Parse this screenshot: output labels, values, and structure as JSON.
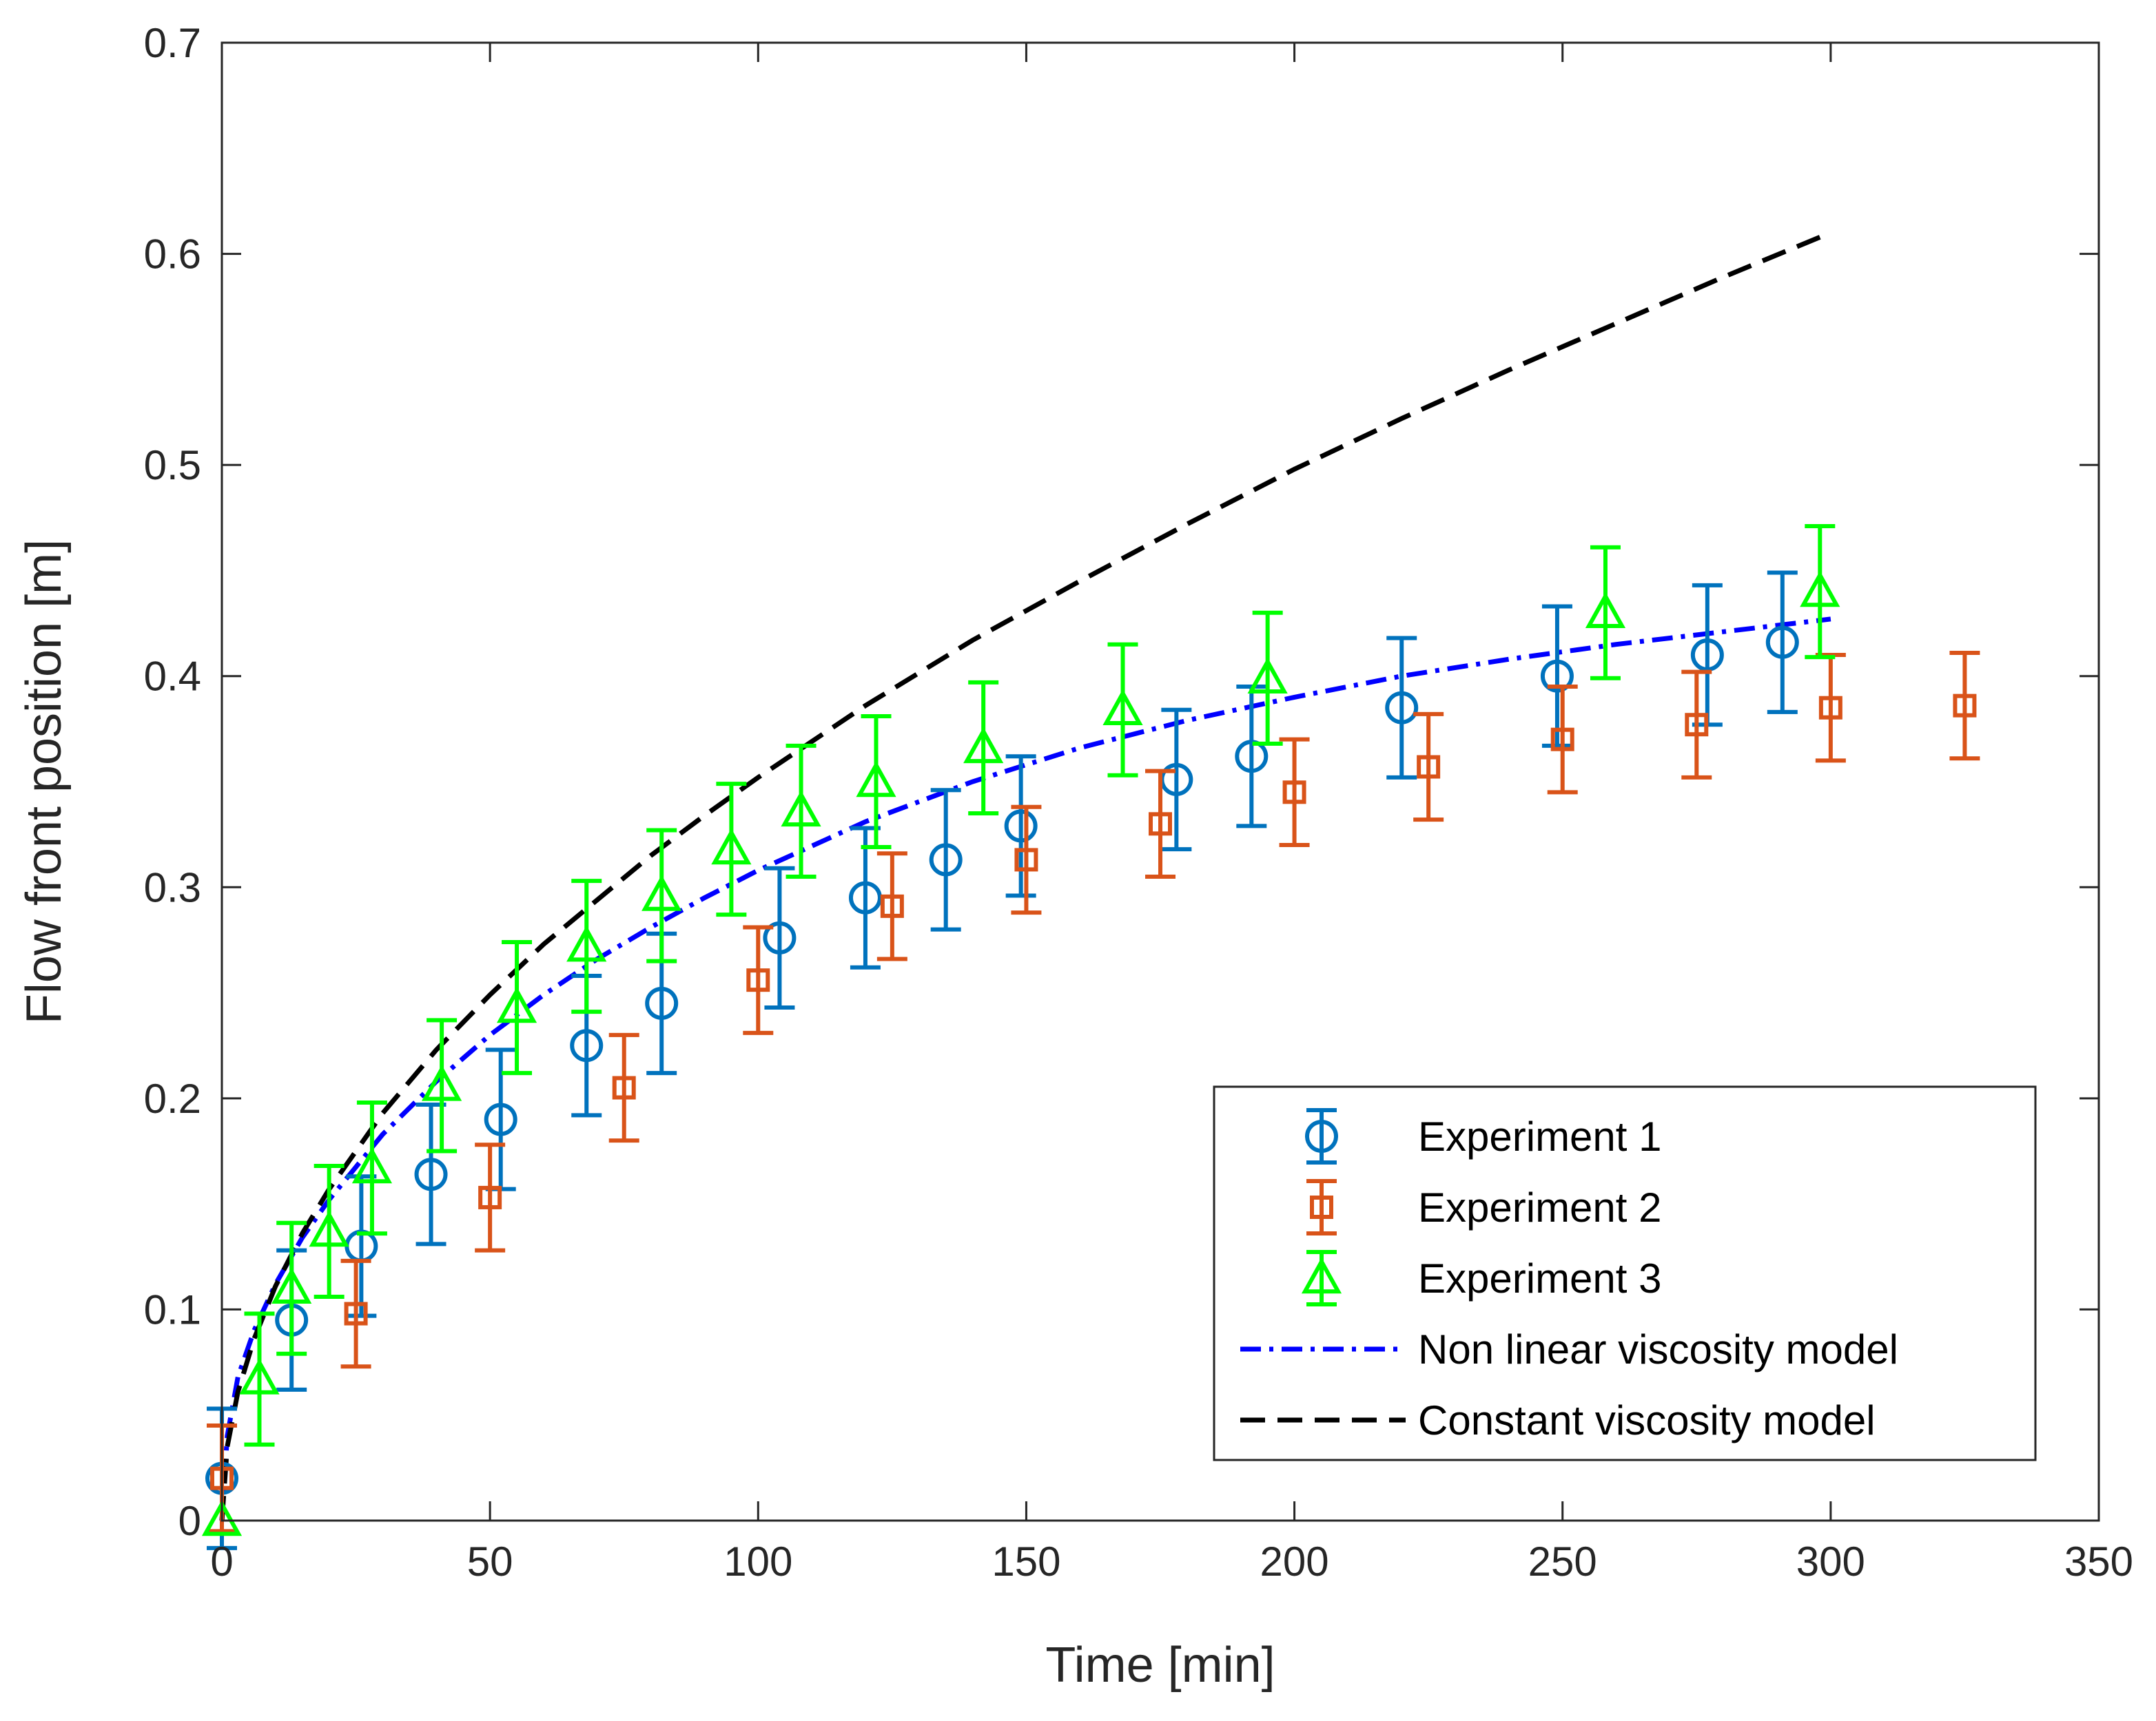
{
  "chart_data": {
    "type": "scatter",
    "title": "",
    "xlabel": "Time [min]",
    "ylabel": "Flow front position [m]",
    "xlim": [
      0,
      350
    ],
    "ylim": [
      0,
      0.7
    ],
    "xticks": [
      0,
      50,
      100,
      150,
      200,
      250,
      300,
      350
    ],
    "yticks": [
      0,
      0.1,
      0.2,
      0.3,
      0.4,
      0.5,
      0.6,
      0.7
    ],
    "xtick_labels": [
      "0",
      "50",
      "100",
      "150",
      "200",
      "250",
      "300",
      "350"
    ],
    "ytick_labels": [
      "0",
      "0.1",
      "0.2",
      "0.3",
      "0.4",
      "0.5",
      "0.6",
      "0.7"
    ],
    "grid": false,
    "legend_position": "bottom-right",
    "series": [
      {
        "name": "Experiment 1",
        "kind": "errorbar",
        "marker": "circle",
        "color": "#0072BD",
        "points": [
          {
            "x": 0,
            "y": 0.02,
            "err": 0.033
          },
          {
            "x": 13,
            "y": 0.095,
            "err": 0.033
          },
          {
            "x": 26,
            "y": 0.13,
            "err": 0.033
          },
          {
            "x": 39,
            "y": 0.164,
            "err": 0.033
          },
          {
            "x": 52,
            "y": 0.19,
            "err": 0.033
          },
          {
            "x": 68,
            "y": 0.225,
            "err": 0.033
          },
          {
            "x": 82,
            "y": 0.245,
            "err": 0.033
          },
          {
            "x": 104,
            "y": 0.276,
            "err": 0.033
          },
          {
            "x": 120,
            "y": 0.295,
            "err": 0.033
          },
          {
            "x": 135,
            "y": 0.313,
            "err": 0.033
          },
          {
            "x": 149,
            "y": 0.329,
            "err": 0.033
          },
          {
            "x": 178,
            "y": 0.351,
            "err": 0.033
          },
          {
            "x": 192,
            "y": 0.362,
            "err": 0.033
          },
          {
            "x": 220,
            "y": 0.385,
            "err": 0.033
          },
          {
            "x": 249,
            "y": 0.4,
            "err": 0.033
          },
          {
            "x": 277,
            "y": 0.41,
            "err": 0.033
          },
          {
            "x": 291,
            "y": 0.416,
            "err": 0.033
          }
        ]
      },
      {
        "name": "Experiment 2",
        "kind": "errorbar",
        "marker": "square",
        "color": "#D95319",
        "points": [
          {
            "x": 0,
            "y": 0.02,
            "err": 0.025
          },
          {
            "x": 25,
            "y": 0.098,
            "err": 0.025
          },
          {
            "x": 50,
            "y": 0.153,
            "err": 0.025
          },
          {
            "x": 75,
            "y": 0.205,
            "err": 0.025
          },
          {
            "x": 100,
            "y": 0.256,
            "err": 0.025
          },
          {
            "x": 125,
            "y": 0.291,
            "err": 0.025
          },
          {
            "x": 150,
            "y": 0.313,
            "err": 0.025
          },
          {
            "x": 175,
            "y": 0.33,
            "err": 0.025
          },
          {
            "x": 200,
            "y": 0.345,
            "err": 0.025
          },
          {
            "x": 225,
            "y": 0.357,
            "err": 0.025
          },
          {
            "x": 250,
            "y": 0.37,
            "err": 0.025
          },
          {
            "x": 275,
            "y": 0.377,
            "err": 0.025
          },
          {
            "x": 300,
            "y": 0.385,
            "err": 0.025
          },
          {
            "x": 325,
            "y": 0.386,
            "err": 0.025
          }
        ]
      },
      {
        "name": "Experiment 3",
        "kind": "errorbar",
        "marker": "triangle",
        "color": "#00FF00",
        "points": [
          {
            "x": 0,
            "y": 0.0,
            "err": 0.0
          },
          {
            "x": 7,
            "y": 0.067,
            "err": 0.031
          },
          {
            "x": 13,
            "y": 0.11,
            "err": 0.031
          },
          {
            "x": 20,
            "y": 0.137,
            "err": 0.031
          },
          {
            "x": 28,
            "y": 0.167,
            "err": 0.031
          },
          {
            "x": 41,
            "y": 0.206,
            "err": 0.031
          },
          {
            "x": 55,
            "y": 0.243,
            "err": 0.031
          },
          {
            "x": 68,
            "y": 0.272,
            "err": 0.031
          },
          {
            "x": 82,
            "y": 0.296,
            "err": 0.031
          },
          {
            "x": 95,
            "y": 0.318,
            "err": 0.031
          },
          {
            "x": 108,
            "y": 0.336,
            "err": 0.031
          },
          {
            "x": 122,
            "y": 0.35,
            "err": 0.031
          },
          {
            "x": 142,
            "y": 0.366,
            "err": 0.031
          },
          {
            "x": 168,
            "y": 0.384,
            "err": 0.031
          },
          {
            "x": 195,
            "y": 0.399,
            "err": 0.031
          },
          {
            "x": 258,
            "y": 0.43,
            "err": 0.031
          },
          {
            "x": 298,
            "y": 0.44,
            "err": 0.031
          }
        ]
      },
      {
        "name": "Non linear viscosity model",
        "kind": "line",
        "style": "dash-dot",
        "color": "#0000FF",
        "x": [
          0,
          1,
          3,
          6,
          10,
          15,
          20,
          30,
          40,
          50,
          60,
          70,
          80,
          90,
          100,
          120,
          140,
          160,
          180,
          200,
          220,
          240,
          260,
          280,
          300
        ],
        "y": [
          0.0,
          0.04,
          0.068,
          0.09,
          0.112,
          0.134,
          0.152,
          0.183,
          0.208,
          0.23,
          0.249,
          0.266,
          0.281,
          0.295,
          0.308,
          0.331,
          0.35,
          0.366,
          0.379,
          0.39,
          0.4,
          0.408,
          0.415,
          0.421,
          0.427
        ]
      },
      {
        "name": "Constant viscosity model",
        "kind": "line",
        "style": "dashed",
        "color": "#000000",
        "x": [
          0,
          1,
          3,
          6,
          10,
          15,
          20,
          30,
          40,
          50,
          60,
          70,
          80,
          90,
          100,
          120,
          140,
          160,
          180,
          200,
          220,
          240,
          260,
          280,
          300
        ],
        "y": [
          0.0,
          0.035,
          0.061,
          0.086,
          0.111,
          0.136,
          0.157,
          0.193,
          0.223,
          0.249,
          0.273,
          0.294,
          0.315,
          0.334,
          0.352,
          0.386,
          0.417,
          0.445,
          0.472,
          0.498,
          0.522,
          0.545,
          0.567,
          0.589,
          0.61
        ]
      }
    ]
  }
}
